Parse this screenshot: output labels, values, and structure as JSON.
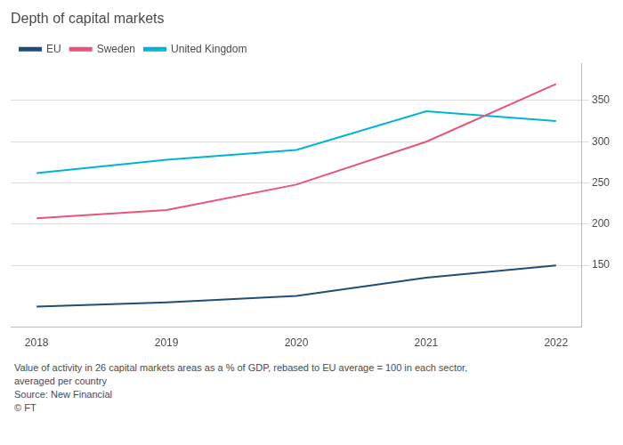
{
  "chart_data": {
    "type": "line",
    "title": "Depth of capital markets",
    "annotations": [
      "Value of activity in 26 capital markets areas as a % of GDP, rebased to EU average = 100 in each sector,",
      "averaged per country",
      "Source: New Financial",
      "© FT"
    ],
    "x": [
      2018,
      2019,
      2020,
      2021,
      2022
    ],
    "series": [
      {
        "name": "EU",
        "color": "#1f4e79",
        "values": [
          100,
          105,
          113,
          135,
          150
        ]
      },
      {
        "name": "Sweden",
        "color": "#e8547a",
        "values": [
          207,
          217,
          248,
          300,
          370
        ]
      },
      {
        "name": "United Kingdom",
        "color": "#00b4d8",
        "values": [
          262,
          278,
          290,
          337,
          325
        ]
      }
    ],
    "xlim": [
      2017.8,
      2022.2
    ],
    "xticks": [
      2018,
      2019,
      2020,
      2021,
      2022
    ],
    "ylim": [
      75,
      395
    ],
    "yticks": [
      150,
      200,
      250,
      300,
      350
    ],
    "grid": "y",
    "legend": "top"
  }
}
